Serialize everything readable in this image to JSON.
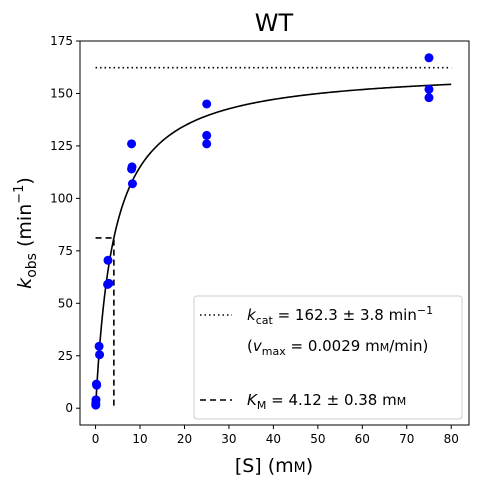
{
  "chart_data": {
    "type": "scatter",
    "title": "WT",
    "xlabel": {
      "main": "[S] (m",
      "unit_sc": "M",
      "close": ")"
    },
    "ylabel": {
      "k": "k",
      "sub": "obs",
      "unit": " (min",
      "sup": "−1",
      "close": ")"
    },
    "xlim": [
      -3.5,
      84
    ],
    "ylim": [
      -8,
      175
    ],
    "x_ticks": [
      0,
      10,
      20,
      30,
      40,
      50,
      60,
      70,
      80
    ],
    "y_ticks": [
      0,
      25,
      50,
      75,
      100,
      125,
      150,
      175
    ],
    "grid": false,
    "legend_position": "lower-right",
    "colors": {
      "points": "#0000ff",
      "lines": "#000000"
    },
    "series": [
      {
        "name": "data",
        "style": "markers",
        "points": [
          [
            0.05,
            1.5
          ],
          [
            0.05,
            2.5
          ],
          [
            0.1,
            4
          ],
          [
            0.2,
            11.5
          ],
          [
            0.25,
            11
          ],
          [
            0.8,
            29.5
          ],
          [
            0.9,
            25.5
          ],
          [
            2.7,
            59
          ],
          [
            2.8,
            70.5
          ],
          [
            3.0,
            59.5
          ],
          [
            8.1,
            126
          ],
          [
            8.2,
            115
          ],
          [
            8.3,
            107
          ],
          [
            8.1,
            114
          ],
          [
            25,
            145
          ],
          [
            25,
            130
          ],
          [
            25,
            126
          ],
          [
            75,
            167
          ],
          [
            75,
            152
          ],
          [
            75,
            148
          ]
        ]
      },
      {
        "name": "fit",
        "style": "solid",
        "equation": "v = 162.3 · S / (4.12 + S)",
        "kcat": 162.3,
        "km": 4.12,
        "x_range": [
          0,
          80
        ]
      },
      {
        "name": "kcat",
        "style": "dotted",
        "points": [
          [
            0,
            162.3
          ],
          [
            80,
            162.3
          ]
        ]
      },
      {
        "name": "km",
        "style": "dashed",
        "points": [
          [
            0,
            81.15
          ],
          [
            4.12,
            81.15
          ],
          [
            4.12,
            0
          ]
        ]
      }
    ],
    "legend": {
      "kcat": {
        "k": "k",
        "sub": "cat",
        "text": " = 162.3 ± 3.8 min",
        "sup": "−1"
      },
      "vmax": {
        "open": "(",
        "v": "v",
        "sub": "max",
        "text": " = 0.0029 m",
        "unit_sc": "M",
        "close": "/min)"
      },
      "km": {
        "k": "K",
        "sub": "M",
        "text": " = 4.12 ± 0.38 m",
        "unit_sc": "M"
      }
    }
  }
}
